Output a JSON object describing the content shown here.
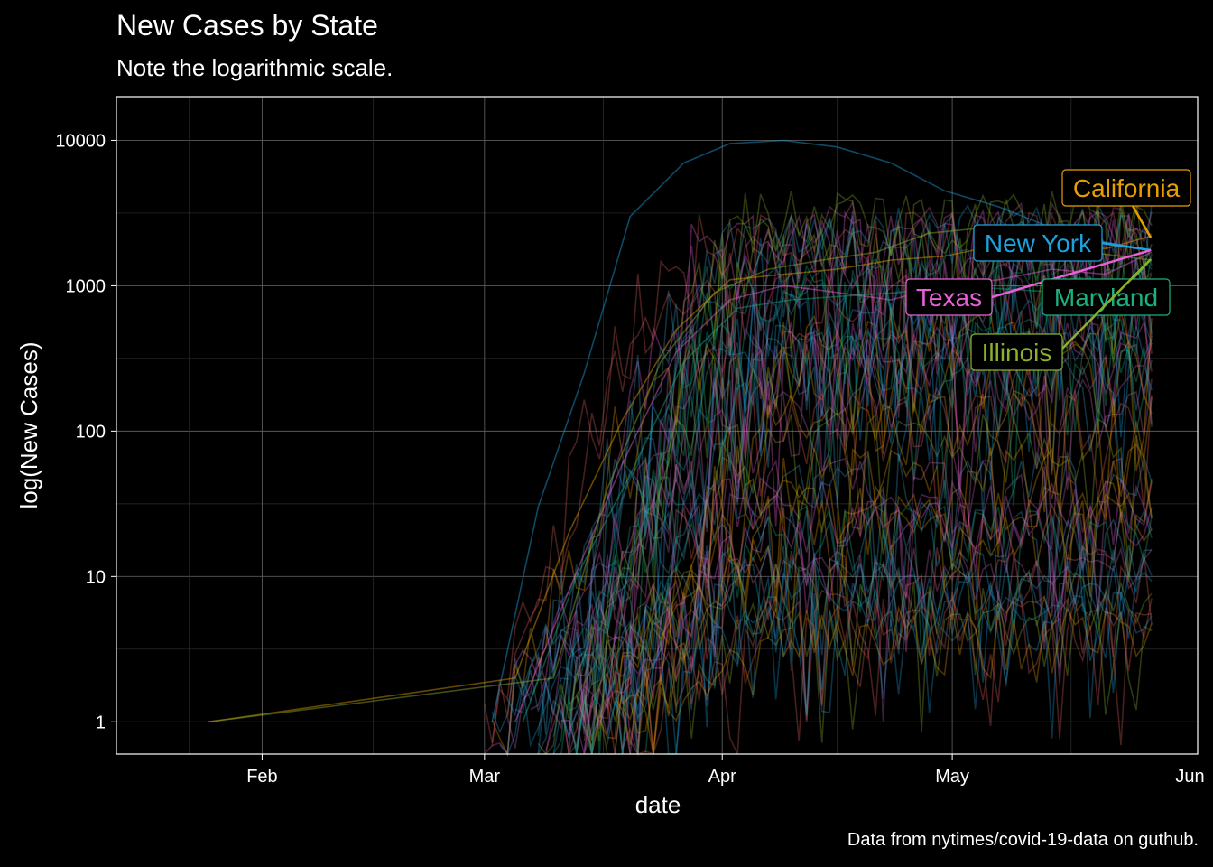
{
  "chart_data": {
    "type": "line",
    "title": "New Cases by State",
    "subtitle": "Note the logarithmic scale.",
    "caption": "Data from nytimes/covid-19-data on guthub.",
    "xlabel": "date",
    "ylabel": "log(New Cases)",
    "y_scale": "log10",
    "ylim": [
      0.6,
      20000
    ],
    "xlim": [
      "2020-01-13",
      "2020-06-02"
    ],
    "x_ticks": [
      {
        "date": "2020-02-01",
        "label": "Feb"
      },
      {
        "date": "2020-03-01",
        "label": "Mar"
      },
      {
        "date": "2020-04-01",
        "label": "Apr"
      },
      {
        "date": "2020-05-01",
        "label": "May"
      },
      {
        "date": "2020-06-01",
        "label": "Jun"
      }
    ],
    "y_ticks": [
      {
        "value": 1,
        "label": "1"
      },
      {
        "value": 10,
        "label": "10"
      },
      {
        "value": 100,
        "label": "100"
      },
      {
        "value": 1000,
        "label": "1000"
      },
      {
        "value": 10000,
        "label": "10000"
      }
    ],
    "grid": true,
    "background": "#000000",
    "series": [
      {
        "name": "California",
        "color": "#E69F00",
        "end_date": "2020-05-27",
        "end_value": 2200,
        "points": [
          [
            "2020-01-25",
            1
          ],
          [
            "2020-03-05",
            2
          ],
          [
            "2020-03-12",
            20
          ],
          [
            "2020-03-19",
            120
          ],
          [
            "2020-03-26",
            500
          ],
          [
            "2020-04-02",
            1100
          ],
          [
            "2020-04-09",
            1200
          ],
          [
            "2020-04-16",
            1300
          ],
          [
            "2020-04-23",
            1500
          ],
          [
            "2020-04-30",
            1600
          ],
          [
            "2020-05-07",
            1900
          ],
          [
            "2020-05-14",
            2000
          ],
          [
            "2020-05-21",
            1800
          ],
          [
            "2020-05-27",
            2200
          ]
        ]
      },
      {
        "name": "New York",
        "color": "#1BA3E0",
        "end_date": "2020-05-27",
        "end_value": 1750,
        "points": [
          [
            "2020-03-02",
            1
          ],
          [
            "2020-03-08",
            30
          ],
          [
            "2020-03-14",
            250
          ],
          [
            "2020-03-20",
            3000
          ],
          [
            "2020-03-27",
            7000
          ],
          [
            "2020-04-02",
            9500
          ],
          [
            "2020-04-09",
            10000
          ],
          [
            "2020-04-16",
            9000
          ],
          [
            "2020-04-23",
            7000
          ],
          [
            "2020-04-30",
            4500
          ],
          [
            "2020-05-07",
            3500
          ],
          [
            "2020-05-14",
            2500
          ],
          [
            "2020-05-21",
            2000
          ],
          [
            "2020-05-27",
            1750
          ]
        ]
      },
      {
        "name": "Texas",
        "color": "#E85FD8",
        "end_date": "2020-05-27",
        "end_value": 1700,
        "points": [
          [
            "2020-03-05",
            1
          ],
          [
            "2020-03-12",
            8
          ],
          [
            "2020-03-19",
            60
          ],
          [
            "2020-03-26",
            350
          ],
          [
            "2020-04-02",
            800
          ],
          [
            "2020-04-09",
            1000
          ],
          [
            "2020-04-16",
            900
          ],
          [
            "2020-04-23",
            800
          ],
          [
            "2020-04-30",
            1000
          ],
          [
            "2020-05-07",
            1100
          ],
          [
            "2020-05-14",
            1300
          ],
          [
            "2020-05-21",
            1200
          ],
          [
            "2020-05-27",
            1700
          ]
        ]
      },
      {
        "name": "Maryland",
        "color": "#1BB07F",
        "end_date": "2020-05-27",
        "end_value": 1000,
        "points": [
          [
            "2020-03-06",
            1
          ],
          [
            "2020-03-13",
            10
          ],
          [
            "2020-03-20",
            50
          ],
          [
            "2020-03-27",
            300
          ],
          [
            "2020-04-03",
            700
          ],
          [
            "2020-04-10",
            800
          ],
          [
            "2020-04-17",
            850
          ],
          [
            "2020-04-24",
            900
          ],
          [
            "2020-05-01",
            1000
          ],
          [
            "2020-05-08",
            950
          ],
          [
            "2020-05-15",
            900
          ],
          [
            "2020-05-21",
            800
          ],
          [
            "2020-05-27",
            1000
          ]
        ]
      },
      {
        "name": "Illinois",
        "color": "#8DB02A",
        "end_date": "2020-05-27",
        "end_value": 1500,
        "points": [
          [
            "2020-01-25",
            1
          ],
          [
            "2020-03-10",
            2
          ],
          [
            "2020-03-17",
            40
          ],
          [
            "2020-03-24",
            300
          ],
          [
            "2020-03-31",
            900
          ],
          [
            "2020-04-07",
            1300
          ],
          [
            "2020-04-14",
            1500
          ],
          [
            "2020-04-21",
            1700
          ],
          [
            "2020-04-28",
            2300
          ],
          [
            "2020-05-05",
            2500
          ],
          [
            "2020-05-12",
            2000
          ],
          [
            "2020-05-19",
            1700
          ],
          [
            "2020-05-27",
            1500
          ]
        ]
      }
    ],
    "labels": [
      {
        "series": "California",
        "text": "California",
        "color": "#E69F00"
      },
      {
        "series": "New York",
        "text": "New York",
        "color": "#1BA3E0"
      },
      {
        "series": "Texas",
        "text": "Texas",
        "color": "#E85FD8"
      },
      {
        "series": "Maryland",
        "text": "Maryland",
        "color": "#1BB07F"
      },
      {
        "series": "Illinois",
        "text": "Illinois",
        "color": "#8DB02A"
      }
    ],
    "background_series_count": 50,
    "background_palette": [
      "#E69F00",
      "#1BA3E0",
      "#E85FD8",
      "#1BB07F",
      "#8DB02A",
      "#E0605B",
      "#3A9CC4",
      "#C765B0"
    ]
  }
}
